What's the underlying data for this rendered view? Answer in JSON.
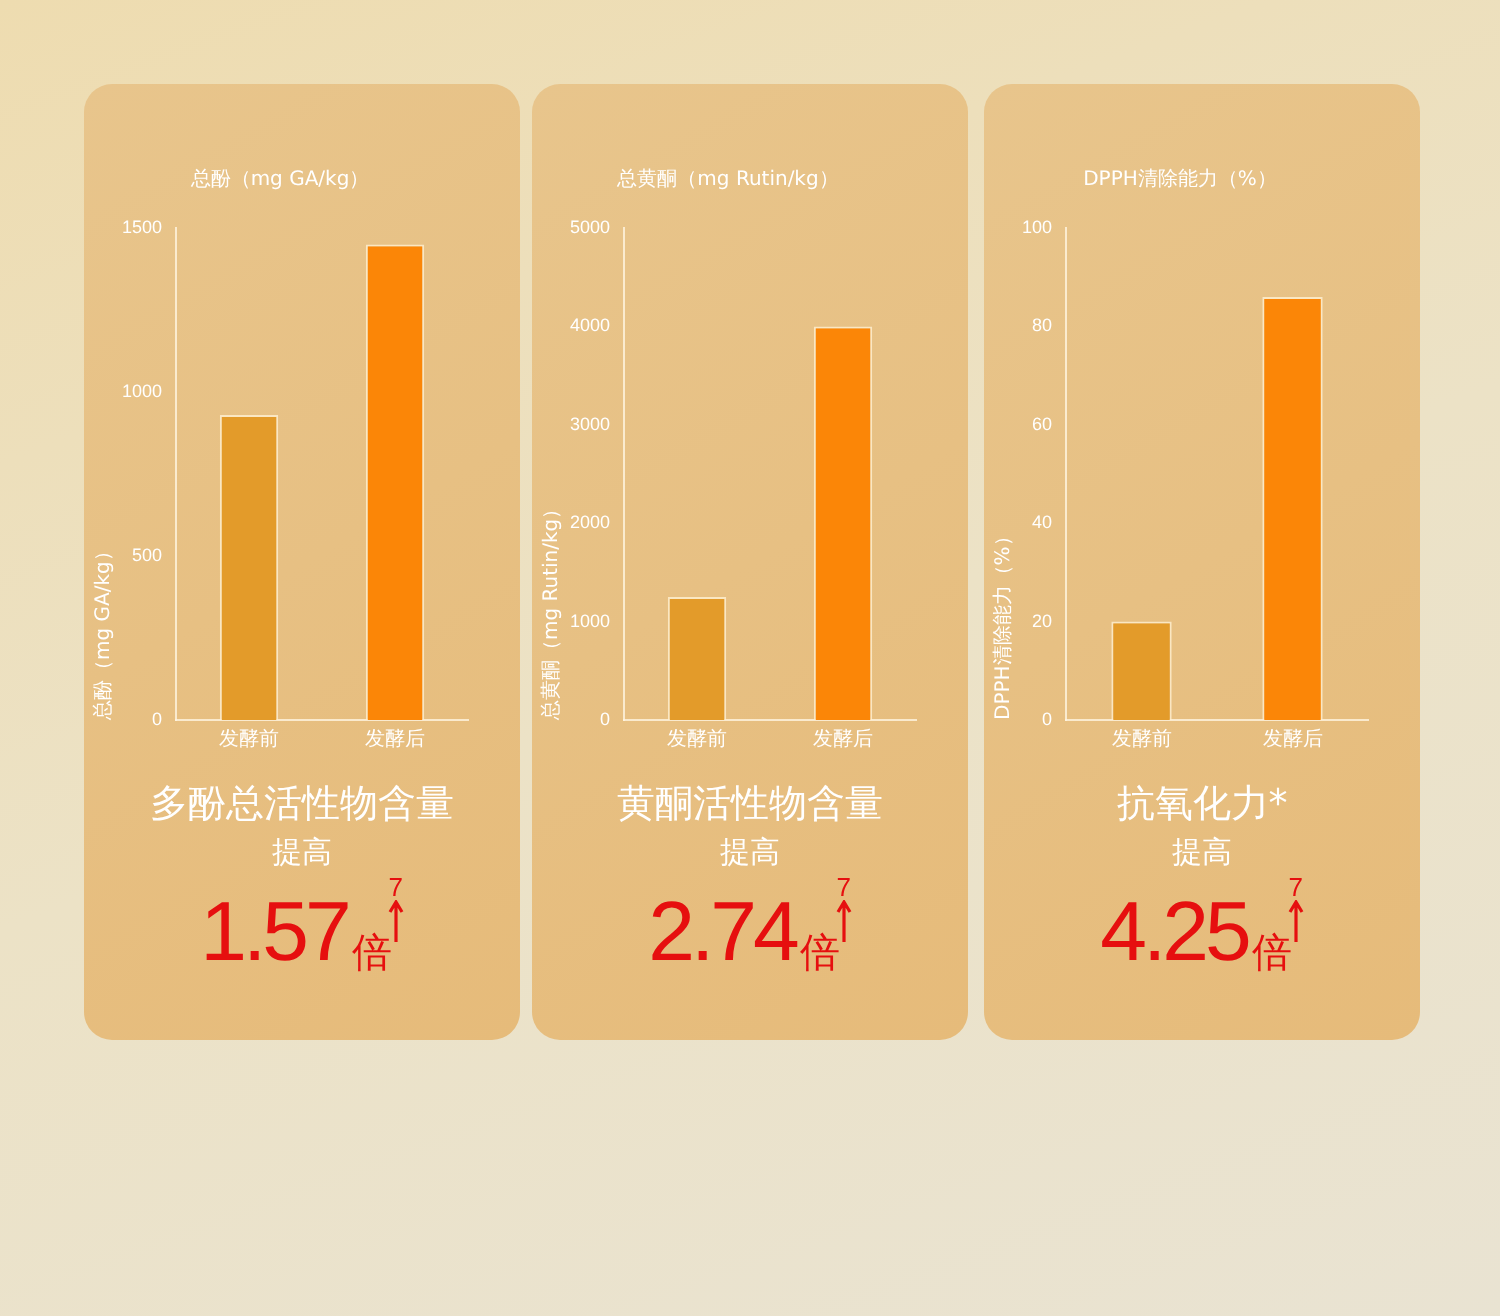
{
  "chart_data": [
    {
      "type": "bar",
      "title": "总酚（mg GA/kg）",
      "ylabel": "总酚（mg GA/kg）",
      "categories": [
        "发酵前",
        "发酵后"
      ],
      "values": [
        930,
        1450
      ],
      "colors": [
        "#e39b2a",
        "#fb8607"
      ],
      "ylim": [
        0,
        1500
      ],
      "yticks": [
        0,
        500,
        1000,
        1500
      ],
      "grid": false,
      "legend": false,
      "annotations": [
        "多酚总活性物含量",
        "提高",
        "1.57",
        "倍",
        "7"
      ]
    },
    {
      "type": "bar",
      "title": "总黄酮（mg Rutin/kg）",
      "ylabel": "总黄酮（mg Rutin/kg）",
      "categories": [
        "发酵前",
        "发酵后"
      ],
      "values": [
        1250,
        4000
      ],
      "colors": [
        "#e39b2a",
        "#fb8607"
      ],
      "ylim": [
        0,
        5000
      ],
      "yticks": [
        0,
        1000,
        2000,
        3000,
        4000,
        5000
      ],
      "grid": false,
      "legend": false,
      "annotations": [
        "黄酮活性物含量",
        "提高",
        "2.74",
        "倍",
        "7"
      ]
    },
    {
      "type": "bar",
      "title": "DPPH清除能力（%）",
      "ylabel": "DPPH清除能力（%）",
      "categories": [
        "发酵前",
        "发酵后"
      ],
      "values": [
        20,
        86
      ],
      "colors": [
        "#e39b2a",
        "#fb8607"
      ],
      "ylim": [
        0,
        100
      ],
      "yticks": [
        0,
        20,
        40,
        60,
        80,
        100
      ],
      "grid": false,
      "legend": false,
      "annotations": [
        "抗氧化力*",
        "提高",
        "4.25",
        "倍",
        "7"
      ]
    }
  ]
}
